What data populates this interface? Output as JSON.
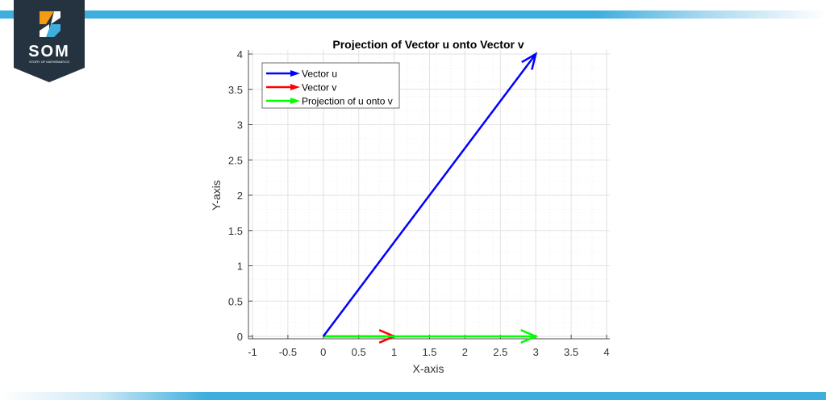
{
  "brand": {
    "name": "SOM",
    "tagline": "STORY OF MATHEMATICS",
    "colors": {
      "dark": "#253340",
      "orange": "#f39c12",
      "blue": "#3daedd",
      "bar": "#3daedd"
    }
  },
  "chart": {
    "title": "Projection of Vector u onto Vector v",
    "xlabel": "X-axis",
    "ylabel": "Y-axis",
    "xticks": [
      "-1",
      "-0.5",
      "0",
      "0.5",
      "1",
      "1.5",
      "2",
      "2.5",
      "3",
      "3.5",
      "4"
    ],
    "yticks": [
      "0",
      "0.5",
      "1",
      "1.5",
      "2",
      "2.5",
      "3",
      "3.5",
      "4"
    ],
    "legend": [
      {
        "label": "Vector u",
        "color": "#0000ff"
      },
      {
        "label": "Vector v",
        "color": "#ff0000"
      },
      {
        "label": "Projection of u onto v",
        "color": "#00ff00"
      }
    ]
  },
  "chart_data": {
    "type": "line",
    "title": "Projection of Vector u onto Vector v",
    "xlabel": "X-axis",
    "ylabel": "Y-axis",
    "xlim": [
      -1,
      4
    ],
    "ylim": [
      0,
      4
    ],
    "grid": true,
    "minor_grid": true,
    "legend_position": "upper-left",
    "series": [
      {
        "name": "Vector u",
        "type": "arrow",
        "color": "#0000ff",
        "start": [
          0,
          0
        ],
        "end": [
          3,
          4
        ]
      },
      {
        "name": "Vector v",
        "type": "arrow",
        "color": "#ff0000",
        "start": [
          0,
          0
        ],
        "end": [
          1,
          0
        ]
      },
      {
        "name": "Projection of u onto v",
        "type": "arrow",
        "color": "#00ff00",
        "start": [
          0,
          0
        ],
        "end": [
          3,
          0
        ]
      }
    ]
  }
}
